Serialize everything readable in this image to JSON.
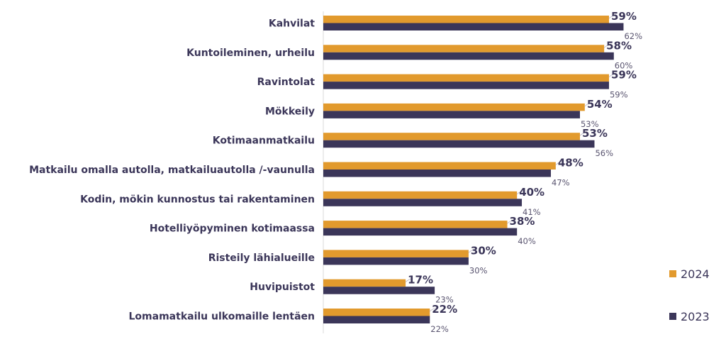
{
  "chart_data": {
    "type": "bar",
    "orientation": "horizontal",
    "title": "",
    "xlabel": "",
    "ylabel": "",
    "xlim": [
      0,
      100
    ],
    "grid": false,
    "legend_position": "bottom-right",
    "value_suffix": "%",
    "categories": [
      "Kahvilat",
      "Kuntoileminen, urheilu",
      "Ravintolat",
      "Mökkeily",
      "Kotimaanmatkailu",
      "Matkailu omalla autolla, matkailuautolla /-vaunulla",
      "Kodin, mökin kunnostus tai rakentaminen",
      "Hotelliyöpyminen kotimaassa",
      "Risteily lähialueille",
      "Huvipuistot",
      "Lomamatkailu ulkomaille lentäen"
    ],
    "series": [
      {
        "name": "2024",
        "color": "#e29a2d",
        "values": [
          59,
          58,
          59,
          54,
          53,
          48,
          40,
          38,
          30,
          17,
          22
        ]
      },
      {
        "name": "2023",
        "color": "#3b3659",
        "values": [
          62,
          60,
          59,
          53,
          56,
          47,
          41,
          40,
          30,
          23,
          22
        ]
      }
    ]
  }
}
